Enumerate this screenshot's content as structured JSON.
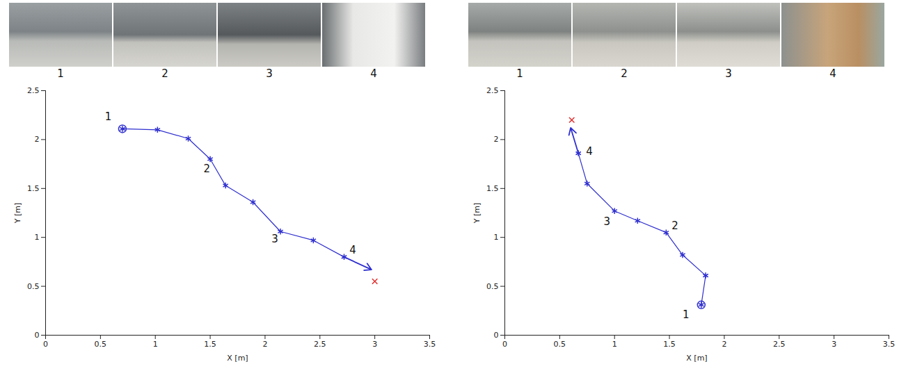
{
  "chart_data": [
    {
      "type": "line",
      "images": {
        "labels": [
          "1",
          "2",
          "3",
          "4"
        ]
      },
      "x": [
        0.7,
        1.02,
        1.3,
        1.5,
        1.64,
        1.89,
        2.14,
        2.44,
        2.72
      ],
      "y": [
        2.11,
        2.1,
        2.01,
        1.8,
        1.53,
        1.36,
        1.06,
        0.97,
        0.8
      ],
      "color": "#2f2fd0",
      "marker": "asterisk",
      "arrow": {
        "x": [
          2.72,
          2.97
        ],
        "y": [
          0.8,
          0.67
        ]
      },
      "target": {
        "x": 3.0,
        "y": 0.55,
        "color": "#e03030",
        "marker": "times"
      },
      "annotations": [
        {
          "text": "1",
          "x": 0.57,
          "y": 2.23
        },
        {
          "text": "2",
          "x": 1.47,
          "y": 1.7
        },
        {
          "text": "3",
          "x": 2.09,
          "y": 0.98
        },
        {
          "text": "4",
          "x": 2.8,
          "y": 0.87
        }
      ],
      "xlabel": "X [m]",
      "ylabel": "Y [m]",
      "xlim": [
        0,
        3.5
      ],
      "ylim": [
        0,
        2.5
      ],
      "xticks": [
        0,
        0.5,
        1,
        1.5,
        2,
        2.5,
        3,
        3.5
      ],
      "yticks": [
        0,
        0.5,
        1,
        1.5,
        2,
        2.5
      ]
    },
    {
      "type": "line",
      "images": {
        "labels": [
          "1",
          "2",
          "3",
          "4"
        ]
      },
      "x": [
        1.79,
        1.83,
        1.62,
        1.47,
        1.21,
        1.0,
        0.75,
        0.67
      ],
      "y": [
        0.31,
        0.61,
        0.82,
        1.05,
        1.17,
        1.27,
        1.55,
        1.86
      ],
      "color": "#2f2fd0",
      "marker": "asterisk",
      "arrow": {
        "x": [
          0.67,
          0.6
        ],
        "y": [
          1.86,
          2.12
        ]
      },
      "target": {
        "x": 0.61,
        "y": 2.2,
        "color": "#e03030",
        "marker": "times"
      },
      "annotations": [
        {
          "text": "1",
          "x": 1.65,
          "y": 0.21
        },
        {
          "text": "2",
          "x": 1.55,
          "y": 1.12
        },
        {
          "text": "3",
          "x": 0.93,
          "y": 1.16
        },
        {
          "text": "4",
          "x": 0.77,
          "y": 1.88
        }
      ],
      "xlabel": "X [m]",
      "ylabel": "Y [m]",
      "xlim": [
        0,
        3.5
      ],
      "ylim": [
        0,
        2.5
      ],
      "xticks": [
        0,
        0.5,
        1,
        1.5,
        2,
        2.5,
        3,
        3.5
      ],
      "yticks": [
        0,
        0.5,
        1,
        1.5,
        2,
        2.5
      ]
    }
  ]
}
